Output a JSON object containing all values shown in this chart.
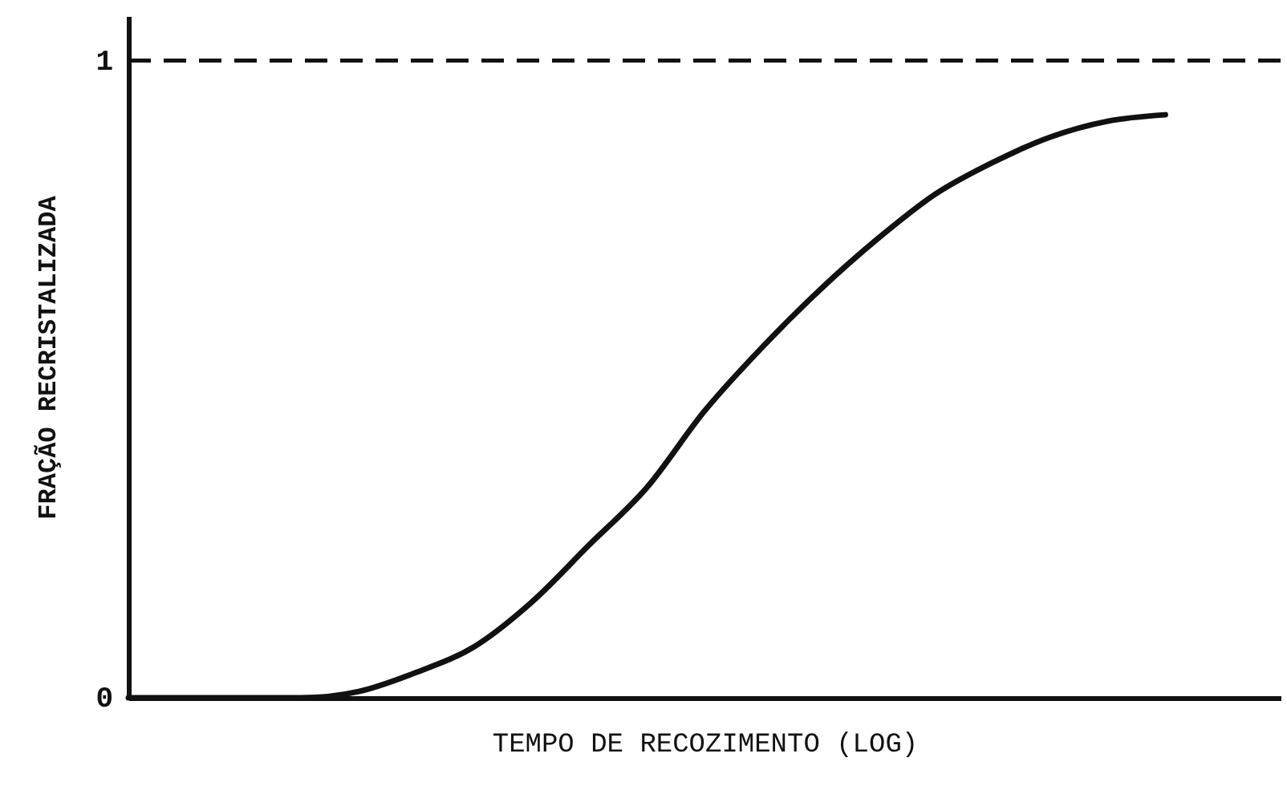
{
  "chart_data": {
    "type": "line",
    "xlabel": "TEMPO DE RECOZIMENTO (LOG)",
    "ylabel": "FRAÇÃO RECRISTALIZADA",
    "categories": [
      null,
      null,
      null,
      null,
      null,
      null,
      null,
      null,
      null,
      null,
      null,
      null,
      null,
      null,
      null,
      null,
      null,
      null,
      null,
      null,
      null
    ],
    "series": [
      {
        "color": "#111111",
        "values": [
          0,
          0,
          0,
          0,
          0.01,
          0.04,
          0.08,
          0.15,
          0.24,
          0.33,
          0.45,
          0.55,
          0.64,
          0.72,
          0.79,
          0.84,
          0.88,
          0.905,
          0.915,
          null,
          null
        ]
      }
    ],
    "ylim": [
      0,
      1.07
    ],
    "yticks": [
      0,
      1
    ],
    "grid": false,
    "marker": "none",
    "line_style": "solid",
    "ref_lines": [
      {
        "axis": "y",
        "value": 1,
        "color": "#111111",
        "line_style": "dashed"
      }
    ]
  }
}
